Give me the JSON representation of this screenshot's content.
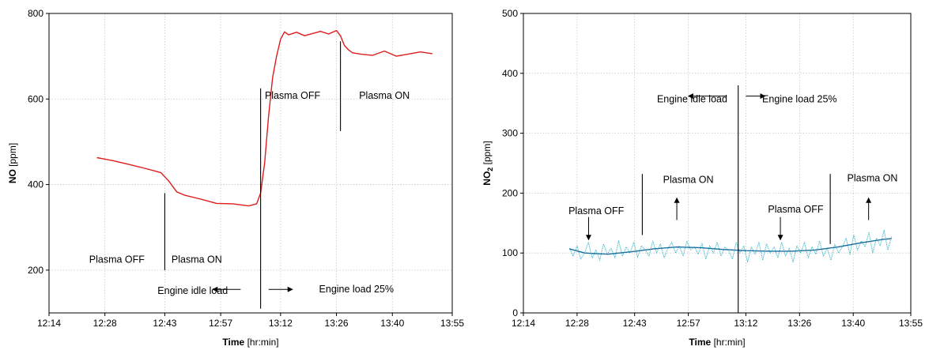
{
  "chart_data": [
    {
      "type": "line",
      "xlabel_bold": "Time",
      "xlabel_rest": "[hr:min]",
      "ylabel_bold": "NO",
      "ylabel_rest": "[ppm]",
      "xlim": [
        "12:14",
        "13:55"
      ],
      "ylim": [
        100,
        800
      ],
      "x_ticks": [
        "12:14",
        "12:28",
        "12:43",
        "12:57",
        "13:12",
        "13:26",
        "13:40",
        "13:55"
      ],
      "y_ticks": [
        "200",
        "400",
        "600",
        "800"
      ],
      "grid": true,
      "line_color": "#dd1c1c",
      "series": [
        {
          "x": [
            "12:26",
            "12:30",
            "12:34",
            "12:38",
            "12:42",
            "12:44",
            "12:46",
            "12:48",
            "12:52",
            "12:56",
            "13:00",
            "13:04",
            "13:06",
            "13:07",
            "13:08",
            "13:09",
            "13:10",
            "13:11",
            "13:12",
            "13:13",
            "13:14",
            "13:16",
            "13:18",
            "13:22",
            "13:24",
            "13:26",
            "13:27",
            "13:28",
            "13:29",
            "13:30",
            "13:32",
            "13:35",
            "13:38",
            "13:41",
            "13:44",
            "13:47",
            "13:50"
          ],
          "values": [
            463,
            456,
            447,
            438,
            428,
            408,
            383,
            375,
            366,
            356,
            355,
            350,
            355,
            380,
            450,
            560,
            650,
            700,
            740,
            757,
            750,
            756,
            748,
            758,
            752,
            760,
            748,
            725,
            715,
            708,
            705,
            702,
            712,
            700,
            705,
            710,
            706
          ]
        }
      ],
      "annotations": [
        {
          "text": "Plasma OFF",
          "x": "12:31",
          "y": 225
        },
        {
          "text": "Plasma ON",
          "x": "12:51",
          "y": 225
        },
        {
          "text": "Plasma OFF",
          "x": "13:15",
          "y": 608
        },
        {
          "text": "Plasma ON",
          "x": "13:38",
          "y": 608
        },
        {
          "text": "Engine idle load",
          "x": "12:50",
          "y": 152
        },
        {
          "text": "Engine load 25%",
          "x": "13:31",
          "y": 155
        }
      ],
      "markers": [
        {
          "type": "vline",
          "x": "12:43",
          "y1": 380,
          "y2": 200
        },
        {
          "type": "vline",
          "x": "13:07",
          "y1": 625,
          "y2": 110
        },
        {
          "type": "vline",
          "x": "13:27",
          "y1": 735,
          "y2": 525
        },
        {
          "type": "arrow",
          "from_x": "13:02",
          "to_x": "12:55",
          "y": 155
        },
        {
          "type": "arrow",
          "from_x": "13:09",
          "to_x": "13:15",
          "y": 155
        }
      ]
    },
    {
      "type": "line",
      "xlabel_bold": "Time",
      "xlabel_rest": "[hr:min]",
      "ylabel_bold": "NO",
      "ylabel_sub": "2",
      "ylabel_rest": "[ppm]",
      "xlim": [
        "12:14",
        "13:55"
      ],
      "ylim": [
        0,
        500
      ],
      "x_ticks": [
        "12:14",
        "12:28",
        "12:43",
        "12:57",
        "13:12",
        "13:26",
        "13:40",
        "13:55"
      ],
      "y_ticks": [
        "0",
        "100",
        "200",
        "300",
        "400",
        "500"
      ],
      "grid": true,
      "raw_color": "#2bb2c8",
      "trend_color": "#1a6f9e",
      "series": [
        {
          "style": "dotted",
          "x_start": "12:26",
          "x_end": "13:50",
          "values": [
            108,
            95,
            112,
            90,
            100,
            118,
            92,
            105,
            88,
            115,
            98,
            108,
            92,
            120,
            95,
            110,
            100,
            118,
            93,
            112,
            105,
            95,
            120,
            100,
            115,
            92,
            108,
            118,
            100,
            112,
            95,
            120,
            105,
            110,
            98,
            116,
            90,
            112,
            100,
            118,
            95,
            110,
            104,
            90,
            118,
            100,
            112,
            85,
            110,
            98,
            118,
            88,
            115,
            100,
            110,
            92,
            118,
            95,
            108,
            85,
            112,
            100,
            118,
            92,
            110,
            98,
            120,
            95,
            108,
            88,
            115,
            100,
            110,
            125,
            98,
            130,
            105,
            120,
            110,
            135,
            100,
            125,
            112,
            138,
            105,
            128
          ]
        },
        {
          "style": "solid",
          "x": [
            "12:26",
            "12:30",
            "12:36",
            "12:42",
            "12:48",
            "12:54",
            "13:00",
            "13:06",
            "13:12",
            "13:18",
            "13:24",
            "13:30",
            "13:36",
            "13:42",
            "13:48",
            "13:50"
          ],
          "values": [
            107,
            100,
            98,
            102,
            107,
            110,
            109,
            106,
            104,
            103,
            103,
            105,
            110,
            117,
            123,
            124
          ]
        }
      ],
      "annotations": [
        {
          "text": "Engine idle load",
          "x": "12:58",
          "y": 357
        },
        {
          "text": "Engine load 25%",
          "x": "13:26",
          "y": 357
        },
        {
          "text": "Plasma OFF",
          "x": "12:33",
          "y": 170
        },
        {
          "text": "Plasma ON",
          "x": "12:57",
          "y": 222
        },
        {
          "text": "Plasma OFF",
          "x": "13:25",
          "y": 173
        },
        {
          "text": "Plasma ON",
          "x": "13:45",
          "y": 225
        }
      ],
      "markers": [
        {
          "type": "vline",
          "x": "13:10",
          "y1": 380,
          "y2": 0
        },
        {
          "type": "vline",
          "x": "12:45",
          "y1": 232,
          "y2": 130
        },
        {
          "type": "vline",
          "x": "13:34",
          "y1": 232,
          "y2": 115
        },
        {
          "type": "arrow",
          "from_x": "13:07",
          "to_x": "12:57",
          "y": 362
        },
        {
          "type": "arrow",
          "from_x": "13:12",
          "to_x": "13:17",
          "y": 362
        },
        {
          "type": "arrow",
          "x": "12:31",
          "from_y": 160,
          "to_y": 122
        },
        {
          "type": "arrow",
          "x": "12:54",
          "from_y": 155,
          "to_y": 192
        },
        {
          "type": "arrow",
          "x": "13:21",
          "from_y": 160,
          "to_y": 122
        },
        {
          "type": "arrow",
          "x": "13:44",
          "from_y": 155,
          "to_y": 192
        }
      ]
    }
  ]
}
